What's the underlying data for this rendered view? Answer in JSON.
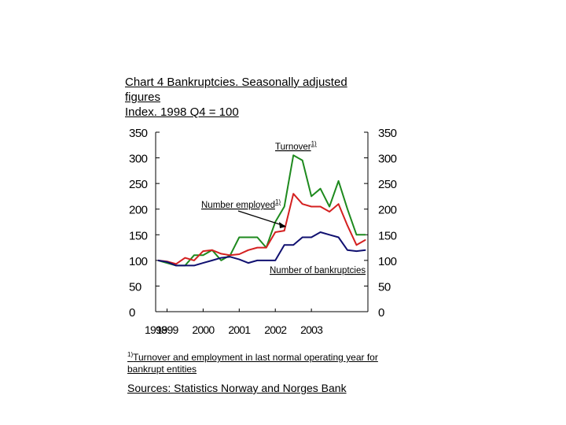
{
  "title": {
    "line1": "Chart 4 Bankruptcies. Seasonally adjusted",
    "line2": "figures",
    "line3": "Index. 1998 Q4 = 100"
  },
  "footnote": {
    "marker": "1)",
    "text": "Turnover and employment in last normal operating year for bankrupt entities"
  },
  "sources": "Sources: Statistics Norway and Norges Bank",
  "colors": {
    "turnover": "#1e8a1e",
    "employed": "#d42020",
    "bankruptcies": "#101070",
    "axis": "#000000"
  },
  "chart_data": {
    "type": "line",
    "title": "Chart 4 Bankruptcies. Seasonally adjusted figures",
    "ylabel": "Index. 1998 Q4 = 100",
    "ylim": [
      0,
      350
    ],
    "yticks": [
      0,
      50,
      100,
      150,
      200,
      250,
      300,
      350
    ],
    "ytick_labels": [
      "0",
      "50",
      "100",
      "150",
      "200",
      "250",
      "300",
      "350"
    ],
    "xticks": [
      "1998",
      "1999",
      "2000",
      "2001",
      "2002",
      "2003"
    ],
    "x_start": "1998 Q4",
    "grid": false,
    "series": [
      {
        "key": "turnover",
        "values": [
          100,
          95,
          90,
          90,
          110,
          110,
          120,
          100,
          110,
          145,
          145,
          145,
          125,
          175,
          205,
          305,
          295,
          225,
          240,
          205,
          255,
          200,
          150,
          150
        ]
      },
      {
        "key": "employed",
        "values": [
          100,
          98,
          93,
          105,
          100,
          118,
          120,
          113,
          110,
          112,
          120,
          125,
          125,
          155,
          158,
          230,
          210,
          205,
          205,
          195,
          210,
          168,
          130,
          140
        ]
      },
      {
        "key": "bankruptcies",
        "values": [
          100,
          97,
          90,
          90,
          90,
          95,
          100,
          105,
          107,
          102,
          95,
          100,
          100,
          100,
          130,
          130,
          145,
          145,
          155,
          150,
          145,
          120,
          118,
          120
        ]
      }
    ],
    "annotations": [
      {
        "text": "Turnover",
        "sup": "1)"
      },
      {
        "text": "Number employed",
        "sup": "1)"
      },
      {
        "text": "Number of bankruptcies",
        "sup": ""
      }
    ]
  }
}
